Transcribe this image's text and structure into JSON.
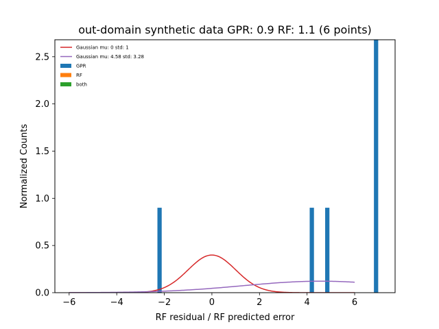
{
  "chart_data": {
    "type": "bar",
    "title": "out-domain synthetic data GPR: 0.9 RF: 1.1 (6 points)",
    "xlabel": "RF residual / RF predicted error",
    "ylabel": "Normalized Counts",
    "xlim": [
      -6.6,
      7.7
    ],
    "ylim": [
      0,
      2.68
    ],
    "xticks": [
      -6,
      -4,
      -2,
      0,
      2,
      4,
      6
    ],
    "xtick_labels": [
      "−6",
      "−4",
      "−2",
      "0",
      "2",
      "4",
      "6"
    ],
    "yticks": [
      0.0,
      0.5,
      1.0,
      1.5,
      2.0,
      2.5
    ],
    "ytick_labels": [
      "0.0",
      "0.5",
      "1.0",
      "1.5",
      "2.0",
      "2.5"
    ],
    "grid": false,
    "legend_position": "top-left",
    "colors": {
      "gpr": "#1f77b4",
      "rf": "#ff7f0e",
      "both": "#2ca02c",
      "gaussian_std": "#d62728",
      "gaussian_fit": "#9467bd"
    },
    "legend": [
      {
        "label": "Gaussian mu: 0 std: 1",
        "kind": "line",
        "color": "#d62728"
      },
      {
        "label": "Gaussian mu: 4.58 std: 3.28",
        "kind": "line",
        "color": "#9467bd"
      },
      {
        "label": "GPR",
        "kind": "patch",
        "color": "#1f77b4"
      },
      {
        "label": "RF",
        "kind": "patch",
        "color": "#ff7f0e"
      },
      {
        "label": "both",
        "kind": "patch",
        "color": "#2ca02c"
      }
    ],
    "bars": {
      "series": "GPR",
      "bin_width": 0.18,
      "centers": [
        -2.2,
        4.2,
        4.85,
        6.9
      ],
      "values": [
        0.9,
        0.9,
        0.9,
        2.7
      ]
    },
    "curves": [
      {
        "name": "Gaussian mu: 0 std: 1",
        "mu": 0,
        "std": 1,
        "x_range": [
          -6,
          6
        ],
        "color": "#d62728"
      },
      {
        "name": "Gaussian mu: 4.58 std: 3.28",
        "mu": 4.58,
        "std": 3.28,
        "x_range": [
          -6,
          6
        ],
        "color": "#9467bd"
      }
    ]
  }
}
